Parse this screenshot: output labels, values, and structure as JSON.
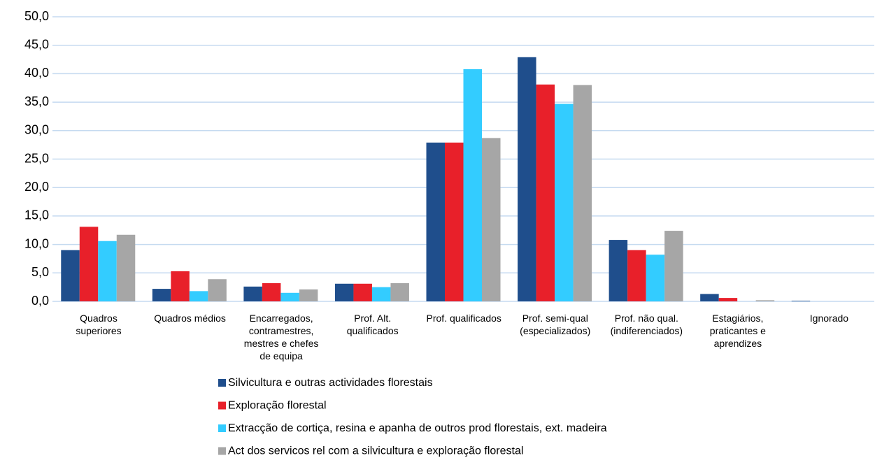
{
  "chart_data": {
    "type": "bar",
    "categories": [
      "Quadros\nsuperiores",
      "Quadros médios",
      "Encarregados,\ncontramestres,\nmestres e chefes\nde equipa",
      "Prof. Alt.\nqualificados",
      "Prof. qualificados",
      "Prof. semi-qual\n(especializados)",
      "Prof. não qual.\n(indiferenciados)",
      "Estagiários,\npraticantes e\naprendizes",
      "Ignorado"
    ],
    "series": [
      {
        "name": "Silvicultura e outras actividades florestais",
        "color": "#1f4e8c",
        "values": [
          9.0,
          2.2,
          2.6,
          3.1,
          27.9,
          42.9,
          10.8,
          1.3,
          0.1
        ]
      },
      {
        "name": "Exploração florestal",
        "color": "#e8202a",
        "values": [
          13.1,
          5.3,
          3.2,
          3.1,
          27.9,
          38.1,
          9.0,
          0.6,
          0.0
        ]
      },
      {
        "name": "Extracção de cortiça, resina e apanha de outros prod florestais, ext. madeira",
        "color": "#33ccff",
        "values": [
          10.6,
          1.8,
          1.5,
          2.5,
          40.8,
          34.7,
          8.2,
          0.0,
          0.0
        ]
      },
      {
        "name": "Act dos servicos rel com a silvicultura e exploração florestal",
        "color": "#a6a6a6",
        "values": [
          11.7,
          3.9,
          2.1,
          3.2,
          28.7,
          38.0,
          12.4,
          0.2,
          0.0
        ]
      }
    ],
    "ylim": [
      0,
      50
    ],
    "yticks": [
      {
        "value": 0,
        "label": "0,0"
      },
      {
        "value": 5,
        "label": "5,0"
      },
      {
        "value": 10,
        "label": "10,0"
      },
      {
        "value": 15,
        "label": "15,0"
      },
      {
        "value": 20,
        "label": "20,0"
      },
      {
        "value": 25,
        "label": "25,0"
      },
      {
        "value": 30,
        "label": "30,0"
      },
      {
        "value": 35,
        "label": "35,0"
      },
      {
        "value": 40,
        "label": "40,0"
      },
      {
        "value": 45,
        "label": "45,0"
      },
      {
        "value": 50,
        "label": "50,0"
      }
    ],
    "grid": true,
    "legend": "bottom"
  }
}
